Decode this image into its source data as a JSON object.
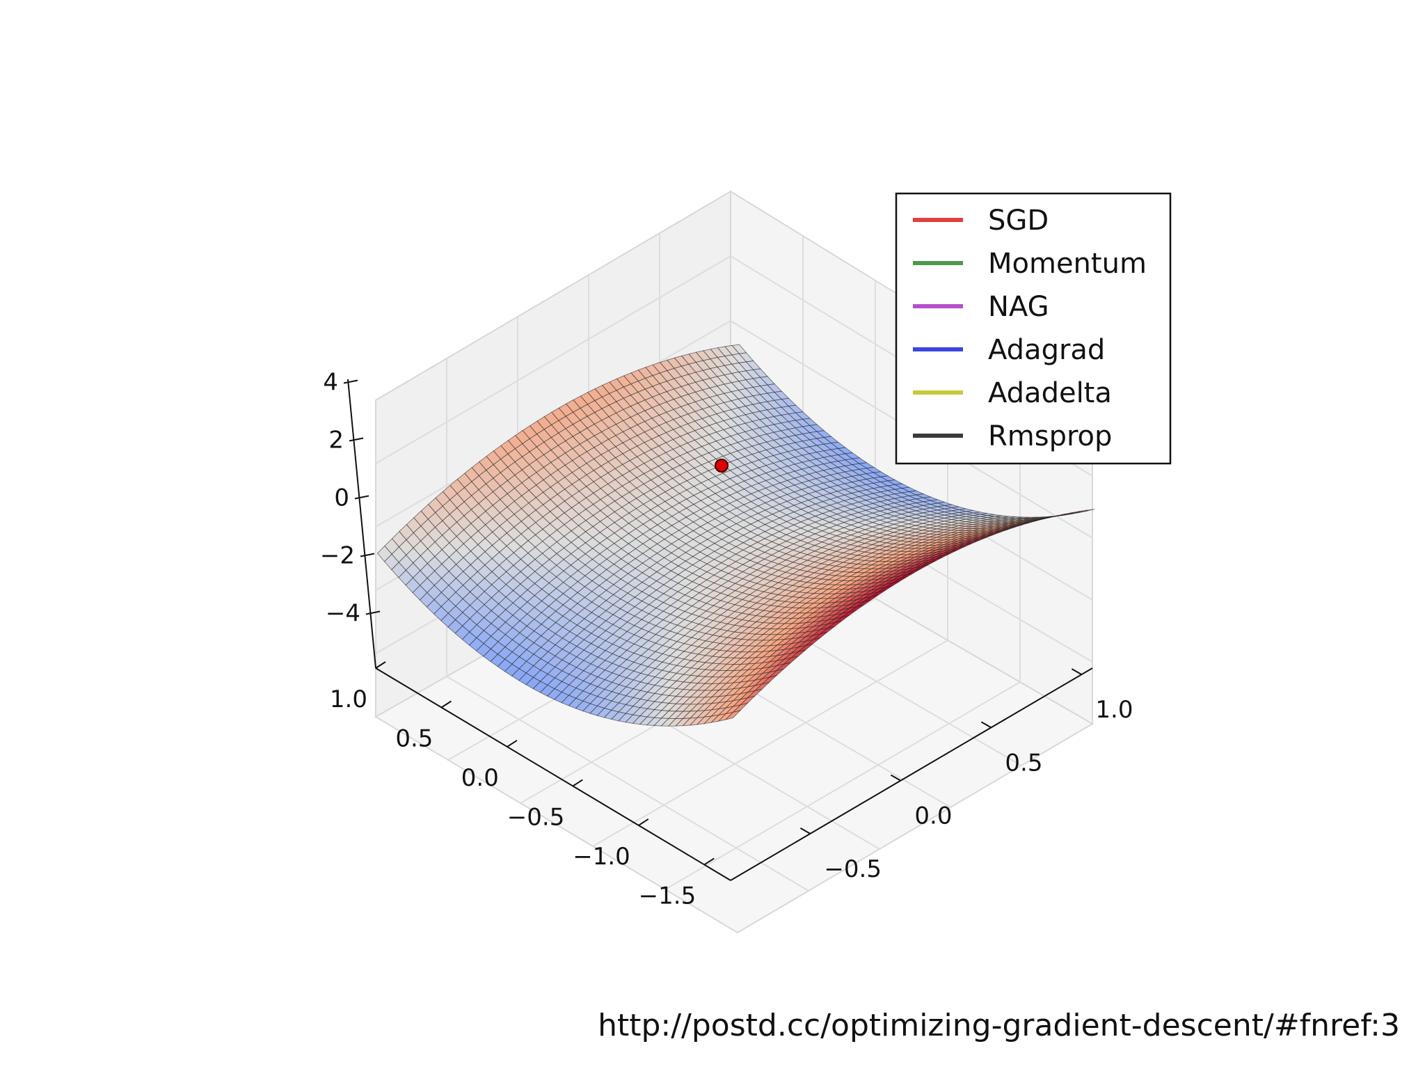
{
  "caption": "http://postd.cc/optimizing-gradient-descent/#fnref:3",
  "chart_data": {
    "type": "surface3d",
    "surface_function": "z = x^2 - y^2",
    "colormap": "coolwarm",
    "x_range": [
      -1.5,
      1.0
    ],
    "y_range": [
      -1.0,
      1.0
    ],
    "z_range": [
      -4,
      4
    ],
    "x_ticks": [
      "1.0",
      "0.5",
      "0.0",
      "−0.5",
      "−1.0",
      "−1.5"
    ],
    "y_ticks": [
      "1.0",
      "0.5",
      "0.0",
      "−0.5"
    ],
    "z_ticks": [
      "4",
      "2",
      "0",
      "−2",
      "−4"
    ],
    "start_point": {
      "x": 0.7,
      "y": 0.0,
      "z": 0.49
    },
    "start_point_color": "#e00000",
    "grid": true,
    "legend_position": "top-right",
    "series": [
      {
        "name": "SGD",
        "color": "#e0403c"
      },
      {
        "name": "Momentum",
        "color": "#4e9a4c"
      },
      {
        "name": "NAG",
        "color": "#b550c8"
      },
      {
        "name": "Adagrad",
        "color": "#3c46e0"
      },
      {
        "name": "Adadelta",
        "color": "#c8c83c"
      },
      {
        "name": "Rmsprop",
        "color": "#3a3a3a"
      }
    ]
  }
}
